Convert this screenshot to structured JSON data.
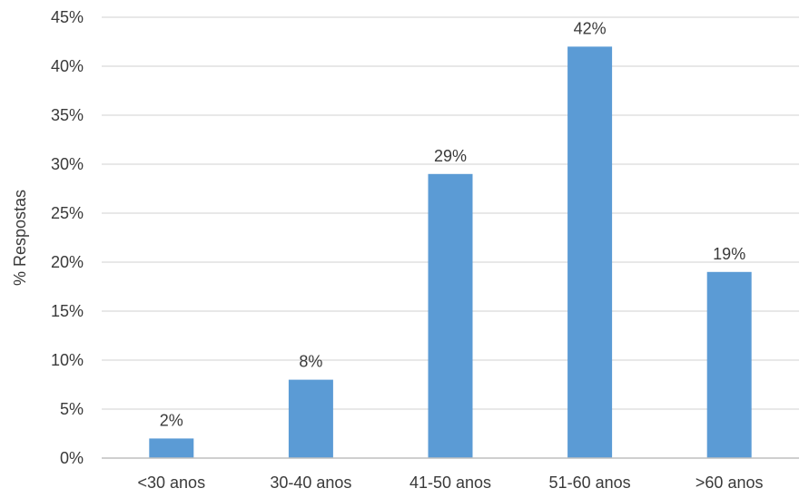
{
  "chart_data": {
    "type": "bar",
    "title": "",
    "xlabel": "",
    "ylabel": "% Respostas",
    "categories": [
      "<30 anos",
      "30-40 anos",
      "41-50 anos",
      "51-60 anos",
      ">60 anos"
    ],
    "values": [
      2,
      8,
      29,
      42,
      19
    ],
    "data_labels": [
      "2%",
      "8%",
      "29%",
      "42%",
      "19%"
    ],
    "ylim": [
      0,
      45
    ],
    "y_ticks": [
      0,
      5,
      10,
      15,
      20,
      25,
      30,
      35,
      40,
      45
    ],
    "y_tick_labels": [
      "0%",
      "5%",
      "10%",
      "15%",
      "20%",
      "25%",
      "30%",
      "35%",
      "40%",
      "45%"
    ],
    "grid": true,
    "legend": "none",
    "colors": {
      "bar": "#5B9BD5",
      "grid": "#d9d9d9",
      "axis": "#bfbfbf",
      "text": "#3a3a3a"
    }
  }
}
